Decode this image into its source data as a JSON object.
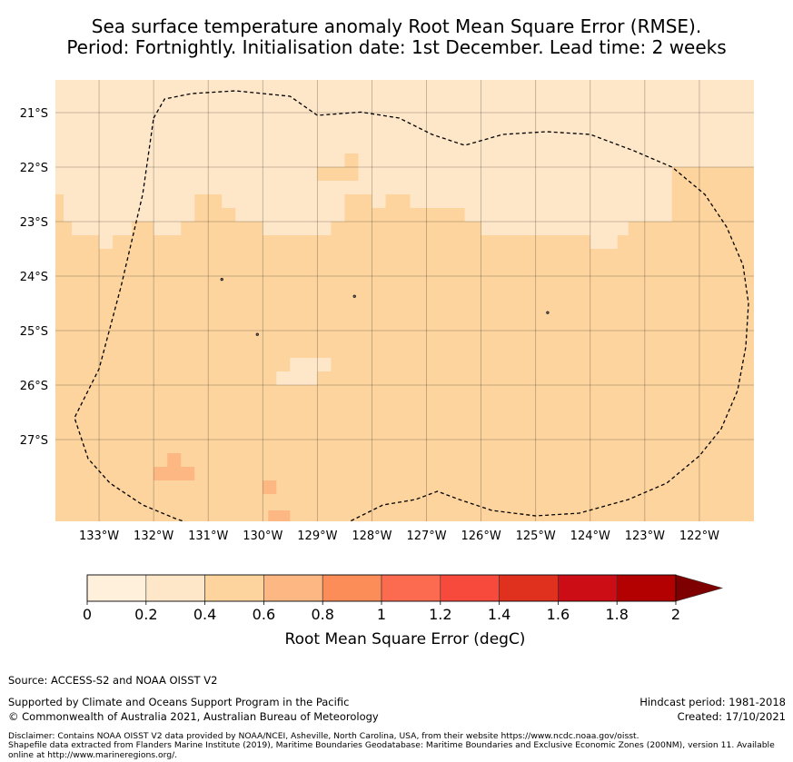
{
  "title": {
    "line1": "Sea surface temperature anomaly Root Mean Square Error (RMSE).",
    "line2": "Period: Fortnightly. Initialisation date: 1st December. Lead time: 2 weeks"
  },
  "map": {
    "lon_range": [
      -133.8,
      -121.0
    ],
    "lat_range": [
      -28.5,
      -20.4
    ],
    "lon_ticks": [
      {
        "value": -133,
        "label": "133°W"
      },
      {
        "value": -132,
        "label": "132°W"
      },
      {
        "value": -131,
        "label": "131°W"
      },
      {
        "value": -130,
        "label": "130°W"
      },
      {
        "value": -129,
        "label": "129°W"
      },
      {
        "value": -128,
        "label": "128°W"
      },
      {
        "value": -127,
        "label": "127°W"
      },
      {
        "value": -126,
        "label": "126°W"
      },
      {
        "value": -125,
        "label": "125°W"
      },
      {
        "value": -124,
        "label": "124°W"
      },
      {
        "value": -123,
        "label": "123°W"
      },
      {
        "value": -122,
        "label": "122°W"
      }
    ],
    "lat_ticks": [
      {
        "value": -21,
        "label": "21°S"
      },
      {
        "value": -22,
        "label": "22°S"
      },
      {
        "value": -23,
        "label": "23°S"
      },
      {
        "value": -24,
        "label": "24°S"
      },
      {
        "value": -25,
        "label": "25°S"
      },
      {
        "value": -26,
        "label": "26°S"
      },
      {
        "value": -27,
        "label": "27°S"
      }
    ],
    "background_bin": "0.4-0.6",
    "regions": [
      {
        "bin": "0.2-0.4",
        "points": [
          [
            -133.8,
            -20.4
          ],
          [
            -121.0,
            -20.4
          ],
          [
            -121.0,
            -22.0
          ],
          [
            -122.5,
            -22.0
          ],
          [
            -122.5,
            -23.0
          ],
          [
            -123.3,
            -23.0
          ],
          [
            -123.3,
            -23.25
          ],
          [
            -126.0,
            -23.25
          ],
          [
            -126.0,
            -23.0
          ],
          [
            -126.3,
            -23.0
          ],
          [
            -126.3,
            -22.75
          ],
          [
            -127.3,
            -22.75
          ],
          [
            -127.3,
            -22.5
          ],
          [
            -127.75,
            -22.5
          ],
          [
            -127.75,
            -22.75
          ],
          [
            -128.0,
            -22.75
          ],
          [
            -128.0,
            -22.5
          ],
          [
            -128.5,
            -22.5
          ],
          [
            -128.5,
            -23.0
          ],
          [
            -128.75,
            -23.0
          ],
          [
            -128.75,
            -23.25
          ],
          [
            -130.0,
            -23.25
          ],
          [
            -130.0,
            -23.0
          ],
          [
            -130.5,
            -23.0
          ],
          [
            -130.5,
            -22.75
          ],
          [
            -130.75,
            -22.75
          ],
          [
            -130.75,
            -22.5
          ],
          [
            -131.25,
            -22.5
          ],
          [
            -131.25,
            -23.0
          ],
          [
            -131.5,
            -23.0
          ],
          [
            -131.5,
            -23.25
          ],
          [
            -132.0,
            -23.25
          ],
          [
            -132.0,
            -23.0
          ],
          [
            -132.4,
            -23.0
          ],
          [
            -132.4,
            -23.25
          ],
          [
            -132.75,
            -23.25
          ],
          [
            -132.75,
            -23.5
          ],
          [
            -133.0,
            -23.5
          ],
          [
            -133.0,
            -23.25
          ],
          [
            -133.5,
            -23.25
          ],
          [
            -133.5,
            -23.0
          ],
          [
            -133.65,
            -23.0
          ],
          [
            -133.65,
            -22.5
          ],
          [
            -133.8,
            -22.5
          ]
        ]
      },
      {
        "bin": "0.2-0.4",
        "points": [
          [
            -124.0,
            -23.25
          ],
          [
            -123.5,
            -23.25
          ],
          [
            -123.5,
            -23.5
          ],
          [
            -124.0,
            -23.5
          ]
        ]
      },
      {
        "bin": "0.2-0.4",
        "points": [
          [
            -129.75,
            -25.75
          ],
          [
            -129.0,
            -25.75
          ],
          [
            -129.0,
            -25.5
          ],
          [
            -129.5,
            -25.5
          ],
          [
            -129.5,
            -25.75
          ],
          [
            -129.75,
            -25.75
          ],
          [
            -129.75,
            -26.0
          ],
          [
            -129.25,
            -26.0
          ]
        ]
      },
      {
        "bin": "0.2-0.4",
        "points": [
          [
            -129.5,
            -25.5
          ],
          [
            -128.75,
            -25.5
          ],
          [
            -128.75,
            -25.75
          ],
          [
            -129.5,
            -25.75
          ]
        ]
      },
      {
        "bin": "0.2-0.4",
        "points": [
          [
            -129.75,
            -25.75
          ],
          [
            -129.0,
            -25.75
          ],
          [
            -129.0,
            -26.0
          ],
          [
            -129.75,
            -26.0
          ]
        ]
      },
      {
        "bin": "0.4-0.6",
        "points": [
          [
            -129.0,
            -22.0
          ],
          [
            -128.25,
            -22.0
          ],
          [
            -128.25,
            -22.25
          ],
          [
            -129.0,
            -22.25
          ]
        ]
      },
      {
        "bin": "0.4-0.6",
        "points": [
          [
            -128.5,
            -21.75
          ],
          [
            -128.25,
            -21.75
          ],
          [
            -128.25,
            -22.0
          ],
          [
            -128.5,
            -22.0
          ]
        ]
      },
      {
        "bin": "0.4-0.6",
        "points": [
          [
            -122.5,
            -22.0
          ],
          [
            -121.75,
            -22.0
          ],
          [
            -121.75,
            -22.5
          ],
          [
            -121.25,
            -22.5
          ],
          [
            -121.25,
            -23.0
          ],
          [
            -122.0,
            -23.0
          ],
          [
            -122.0,
            -23.5
          ],
          [
            -122.5,
            -23.5
          ]
        ]
      },
      {
        "bin": "0.6-0.8",
        "points": [
          [
            -131.75,
            -27.25
          ],
          [
            -131.5,
            -27.25
          ],
          [
            -131.5,
            -27.5
          ],
          [
            -131.25,
            -27.5
          ],
          [
            -131.25,
            -27.75
          ],
          [
            -131.75,
            -27.75
          ]
        ]
      },
      {
        "bin": "0.6-0.8",
        "points": [
          [
            -132.0,
            -27.5
          ],
          [
            -131.5,
            -27.5
          ],
          [
            -131.5,
            -27.75
          ],
          [
            -132.0,
            -27.75
          ]
        ]
      },
      {
        "bin": "0.6-0.8",
        "points": [
          [
            -130.0,
            -27.75
          ],
          [
            -129.75,
            -27.75
          ],
          [
            -129.75,
            -28.0
          ],
          [
            -130.0,
            -28.0
          ]
        ]
      },
      {
        "bin": "0.6-0.8",
        "points": [
          [
            -129.9,
            -28.3
          ],
          [
            -129.5,
            -28.3
          ],
          [
            -129.5,
            -28.5
          ],
          [
            -129.9,
            -28.5
          ]
        ]
      }
    ],
    "boundary": [
      [
        -132.0,
        -21.1
      ],
      [
        -131.8,
        -20.75
      ],
      [
        -131.3,
        -20.65
      ],
      [
        -130.5,
        -20.6
      ],
      [
        -129.5,
        -20.7
      ],
      [
        -129.0,
        -21.05
      ],
      [
        -128.2,
        -20.99
      ],
      [
        -127.5,
        -21.1
      ],
      [
        -126.9,
        -21.4
      ],
      [
        -126.3,
        -21.6
      ],
      [
        -125.6,
        -21.4
      ],
      [
        -124.8,
        -21.35
      ],
      [
        -124.0,
        -21.4
      ],
      [
        -123.2,
        -21.7
      ],
      [
        -122.5,
        -22.0
      ],
      [
        -121.9,
        -22.5
      ],
      [
        -121.5,
        -23.1
      ],
      [
        -121.2,
        -23.8
      ],
      [
        -121.1,
        -24.5
      ],
      [
        -121.15,
        -25.3
      ],
      [
        -121.3,
        -26.1
      ],
      [
        -121.6,
        -26.8
      ],
      [
        -122.0,
        -27.3
      ],
      [
        -122.6,
        -27.8
      ],
      [
        -123.3,
        -28.1
      ],
      [
        -124.2,
        -28.35
      ],
      [
        -125.0,
        -28.4
      ],
      [
        -125.8,
        -28.3
      ],
      [
        -126.4,
        -28.1
      ],
      [
        -126.8,
        -27.95
      ],
      [
        -127.2,
        -28.1
      ],
      [
        -127.8,
        -28.2
      ],
      [
        -128.4,
        -28.5
      ],
      [
        -129.0,
        -28.75
      ],
      [
        -129.6,
        -28.85
      ],
      [
        -130.3,
        -28.8
      ],
      [
        -131.0,
        -28.65
      ],
      [
        -131.6,
        -28.45
      ],
      [
        -132.2,
        -28.2
      ],
      [
        -132.8,
        -27.8
      ],
      [
        -133.2,
        -27.35
      ],
      [
        -133.45,
        -26.6
      ],
      [
        -133.0,
        -25.7
      ],
      [
        -132.6,
        -24.2
      ],
      [
        -132.2,
        -22.5
      ]
    ],
    "islands": [
      {
        "lon": -130.75,
        "lat": -24.06
      },
      {
        "lon": -128.32,
        "lat": -24.37
      },
      {
        "lon": -130.1,
        "lat": -25.07
      },
      {
        "lon": -124.78,
        "lat": -24.67
      }
    ]
  },
  "colorbar": {
    "label": "Root Mean Square Error (degC)",
    "bins": [
      {
        "lo": "0",
        "hi": "0.2",
        "color": "#fff0dc"
      },
      {
        "lo": "0.2",
        "hi": "0.4",
        "color": "#fee6c8"
      },
      {
        "lo": "0.4",
        "hi": "0.6",
        "color": "#fdd49e"
      },
      {
        "lo": "0.6",
        "hi": "0.8",
        "color": "#fdb783"
      },
      {
        "lo": "0.8",
        "hi": "1",
        "color": "#fc8d59"
      },
      {
        "lo": "1",
        "hi": "1.2",
        "color": "#fc6a4f"
      },
      {
        "lo": "1.2",
        "hi": "1.4",
        "color": "#f84a3c"
      },
      {
        "lo": "1.4",
        "hi": "1.6",
        "color": "#e0301e"
      },
      {
        "lo": "1.6",
        "hi": "1.8",
        "color": "#cc0d15"
      },
      {
        "lo": "1.8",
        "hi": "2",
        "color": "#b30000"
      }
    ],
    "over_color": "#7f0000",
    "tick_labels": [
      "0",
      "0.2",
      "0.4",
      "0.6",
      "0.8",
      "1",
      "1.2",
      "1.4",
      "1.6",
      "1.8",
      "2"
    ]
  },
  "footer": {
    "source": "Source: ACCESS-S2 and NOAA OISST V2",
    "supported": "Supported by Climate and Oceans Support Program in the Pacific",
    "copyright": "© Commonwealth of Australia 2021, Australian Bureau of Meteorology",
    "hindcast": "Hindcast period: 1981-2018",
    "created": "Created: 17/10/2021",
    "disclaimer1": "Disclaimer: Contains NOAA OISST V2 data provided by NOAA/NCEI, Asheville, North Carolina, USA, from their website https://www.ncdc.noaa.gov/oisst.",
    "disclaimer2": "Shapefile data extracted from Flanders Marine Institute (2019), Maritime Boundaries Geodatabase: Maritime Boundaries and Exclusive Economic Zones (200NM), version 11. Available online at http://www.marineregions.org/."
  }
}
